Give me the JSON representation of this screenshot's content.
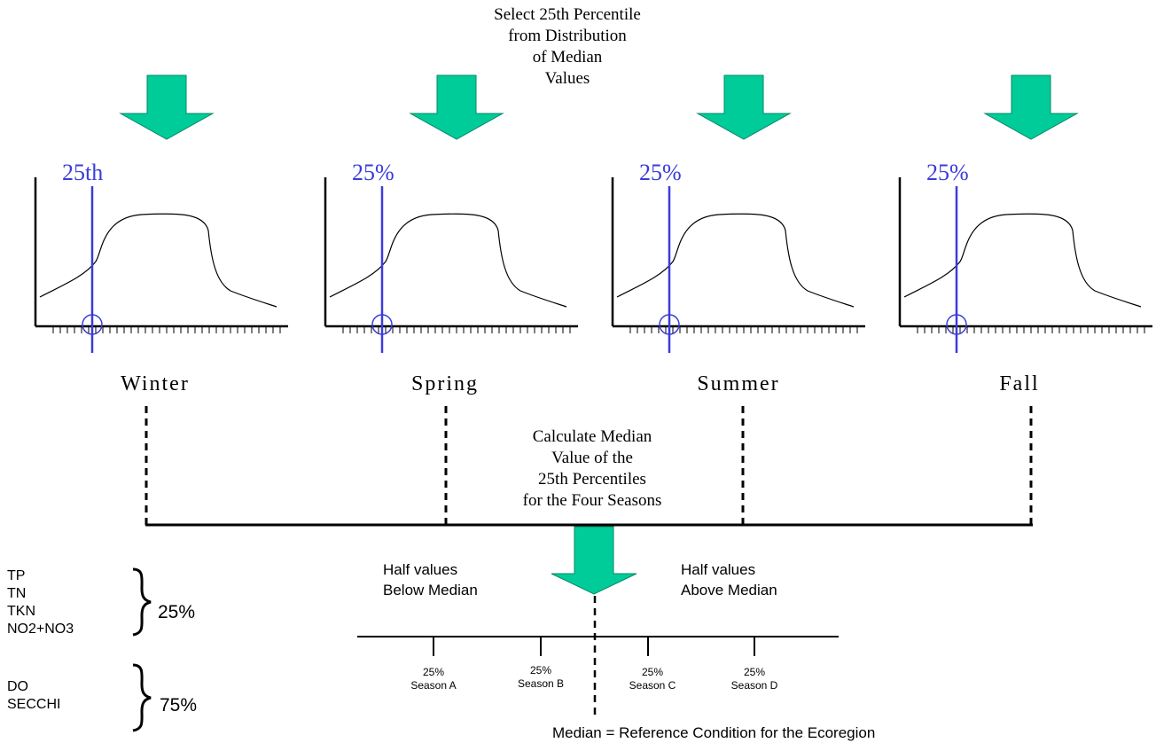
{
  "top_note": {
    "lines": [
      "Select 25th Percentile",
      "from Distribution",
      "of Median",
      "Values"
    ]
  },
  "panels": [
    {
      "id": "winter",
      "label": "Winter",
      "percentile_label": "25th"
    },
    {
      "id": "spring",
      "label": "Spring",
      "percentile_label": "25%"
    },
    {
      "id": "summer",
      "label": "Summer",
      "percentile_label": "25%"
    },
    {
      "id": "fall",
      "label": "Fall",
      "percentile_label": "25%"
    }
  ],
  "middle_note": {
    "lines": [
      "Calculate Median",
      "Value of the",
      "25th Percentiles",
      "for the Four Seasons"
    ]
  },
  "below_median": {
    "lines": [
      "Half values",
      "Below Median"
    ]
  },
  "above_median": {
    "lines": [
      "Half values",
      "Above Median"
    ]
  },
  "scale_ticks": [
    {
      "pct": "25%",
      "season": "Season A"
    },
    {
      "pct": "25%",
      "season": "Season B"
    },
    {
      "pct": "25%",
      "season": "Season C"
    },
    {
      "pct": "25%",
      "season": "Season D"
    }
  ],
  "footer": "Median = Reference Condition for the Ecoregion",
  "groups": [
    {
      "params": [
        "TP",
        "TN",
        "TKN",
        "NO2+NO3"
      ],
      "pct": "25%"
    },
    {
      "params": [
        "DO",
        "SECCHI"
      ],
      "pct": "75%"
    }
  ],
  "colors": {
    "arrow": "#00cc99",
    "marker": "#3b3bdc",
    "line": "#000000"
  }
}
